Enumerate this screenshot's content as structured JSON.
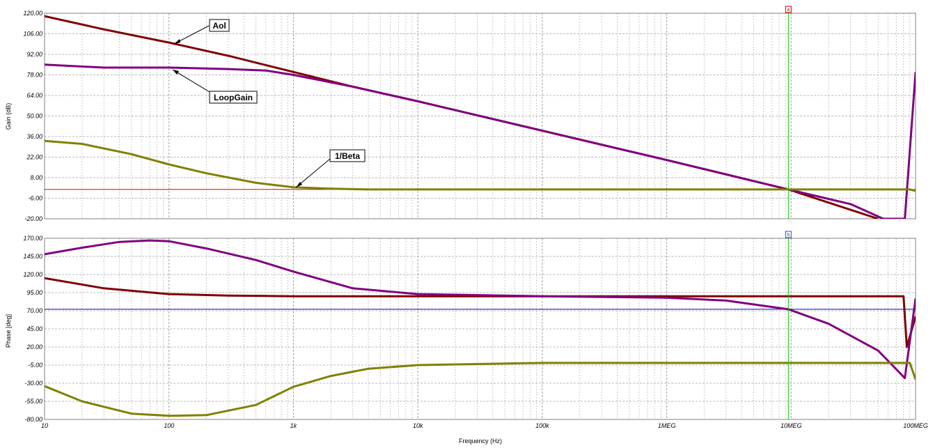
{
  "chart_data": [
    {
      "type": "line",
      "ylabel": "Gain (dB)",
      "xscale": "log",
      "xlim": [
        10,
        100000000
      ],
      "ylim": [
        -20,
        120
      ],
      "yticks": [
        "120.00",
        "106.00",
        "92.00",
        "78.00",
        "64.00",
        "50.00",
        "36.00",
        "22.00",
        "8.00",
        "-6.00",
        "-20.00"
      ],
      "grid": true,
      "cursor": {
        "label": "a",
        "x": 9500000,
        "level": 0
      },
      "series": [
        {
          "name": "Aol",
          "color": "#800000",
          "x": [
            10,
            30,
            100,
            300,
            1000,
            3000,
            10000,
            100000,
            1000000,
            9500000,
            50000000
          ],
          "y": [
            118,
            109,
            100,
            91,
            80,
            70,
            60,
            40,
            20,
            0,
            -20
          ]
        },
        {
          "name": "LoopGain",
          "color": "#800080",
          "x": [
            10,
            30,
            100,
            300,
            600,
            1000,
            3000,
            10000,
            100000,
            1000000,
            9500000,
            30000000,
            55000000,
            82000000,
            100000000
          ],
          "y": [
            85,
            83,
            83,
            82,
            81,
            78,
            70,
            60,
            40,
            20,
            0,
            -10,
            -20,
            -20,
            80
          ]
        },
        {
          "name": "1/Beta",
          "color": "#808000",
          "x": [
            10,
            20,
            50,
            100,
            200,
            500,
            1000,
            2000,
            4000,
            10000,
            100000,
            1000000,
            10000000,
            90000000,
            100000000
          ],
          "y": [
            33,
            31,
            24,
            17,
            11,
            4.5,
            1.5,
            0.5,
            0,
            0,
            0,
            0,
            0,
            0,
            -1
          ]
        }
      ]
    },
    {
      "type": "line",
      "ylabel": "Phase [deg]",
      "xlabel": "Frequency (Hz)",
      "xscale": "log",
      "xlim": [
        10,
        100000000
      ],
      "ylim": [
        -80,
        170
      ],
      "yticks": [
        "170.00",
        "145.00",
        "120.00",
        "95.00",
        "70.00",
        "45.00",
        "20.00",
        "-5.00",
        "-30.00",
        "-55.00",
        "-80.00"
      ],
      "xticks": [
        "10",
        "100",
        "1k",
        "10k",
        "100k",
        "1MEG",
        "10MEG",
        "100MEG"
      ],
      "grid": true,
      "cursor": {
        "label": "b",
        "x": 9500000,
        "level": 72
      },
      "series": [
        {
          "name": "Aol",
          "color": "#800000",
          "x": [
            10,
            30,
            100,
            300,
            1000,
            10000,
            100000,
            1000000,
            10000000,
            80000000,
            85000000,
            100000000
          ],
          "y": [
            115,
            101,
            93,
            91,
            90,
            90,
            90,
            90,
            90,
            90,
            20,
            62
          ]
        },
        {
          "name": "LoopGain",
          "color": "#800080",
          "x": [
            10,
            20,
            40,
            70,
            100,
            200,
            500,
            1000,
            3000,
            10000,
            100000,
            1000000,
            3000000,
            9500000,
            20000000,
            50000000,
            82000000,
            100000000
          ],
          "y": [
            148,
            157,
            165,
            167,
            166,
            156,
            140,
            124,
            101,
            93,
            90,
            88,
            84,
            72,
            52,
            15,
            -23,
            87
          ]
        },
        {
          "name": "1/Beta",
          "color": "#808000",
          "x": [
            10,
            20,
            50,
            100,
            200,
            500,
            1000,
            2000,
            4000,
            10000,
            100000,
            1000000,
            10000000,
            90000000,
            100000000
          ],
          "y": [
            -34,
            -55,
            -72,
            -75,
            -74,
            -60,
            -35,
            -20,
            -10,
            -5,
            -2,
            -2,
            -2,
            -2,
            -25
          ]
        }
      ]
    }
  ],
  "annotations": [
    "Aol",
    "LoopGain",
    "1/Beta"
  ],
  "colors": {
    "aol": "#800000",
    "loopgain": "#800080",
    "beta": "#808000",
    "grid": "#b8b8b8",
    "cursor": "#00cc00",
    "ref_gain": "#cc0000",
    "ref_phase": "#0000cc"
  }
}
